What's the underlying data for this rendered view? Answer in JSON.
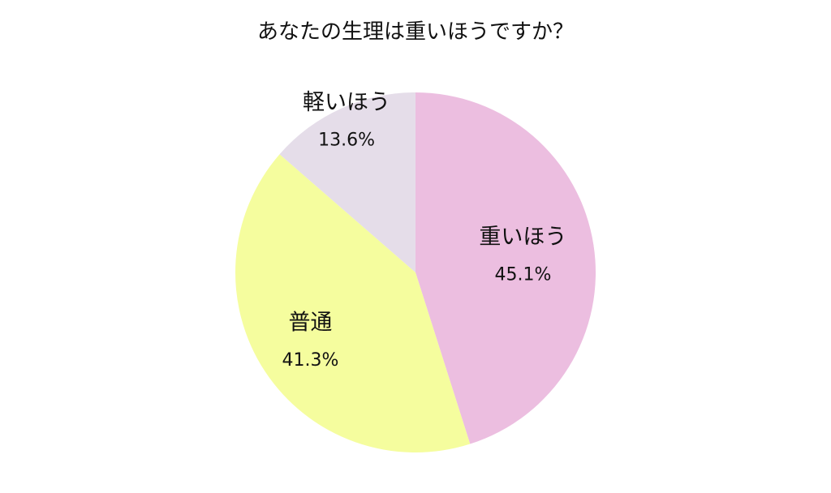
{
  "chart_data": {
    "type": "pie",
    "title": "あなたの生理は重いほうですか？",
    "categories": [
      "重いほう",
      "普通",
      "軽いほう"
    ],
    "values": [
      45.1,
      41.3,
      13.6
    ],
    "value_labels": [
      "45.1%",
      "41.3%",
      "13.6%"
    ],
    "colors": [
      "#ecbee0",
      "#f5fd9e",
      "#e5dde9"
    ]
  }
}
